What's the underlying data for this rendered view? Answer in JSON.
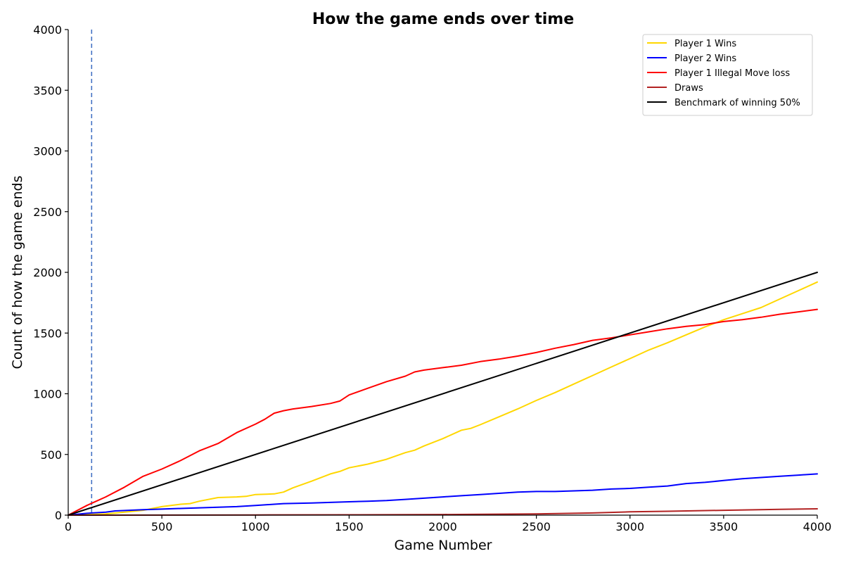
{
  "chart_data": {
    "type": "line",
    "title": "How the game ends over time",
    "xlabel": "Game Number",
    "ylabel": "Count of how the game ends",
    "xlim": [
      0,
      4000
    ],
    "ylim": [
      0,
      4000
    ],
    "xticks": [
      0,
      500,
      1000,
      1500,
      2000,
      2500,
      3000,
      3500,
      4000
    ],
    "yticks": [
      0,
      500,
      1000,
      1500,
      2000,
      2500,
      3000,
      3500,
      4000
    ],
    "grid": false,
    "legend_position": "top-right",
    "vline": {
      "x": 125,
      "color": "#4472c4",
      "style": "dashed"
    },
    "series": [
      {
        "name": "Player 1 Wins",
        "color": "#ffd700",
        "points": [
          [
            0,
            0
          ],
          [
            200,
            10
          ],
          [
            300,
            25
          ],
          [
            400,
            40
          ],
          [
            500,
            70
          ],
          [
            600,
            90
          ],
          [
            650,
            95
          ],
          [
            700,
            115
          ],
          [
            800,
            145
          ],
          [
            900,
            150
          ],
          [
            950,
            155
          ],
          [
            1000,
            170
          ],
          [
            1100,
            175
          ],
          [
            1150,
            190
          ],
          [
            1200,
            225
          ],
          [
            1300,
            280
          ],
          [
            1400,
            340
          ],
          [
            1450,
            360
          ],
          [
            1500,
            390
          ],
          [
            1600,
            420
          ],
          [
            1700,
            460
          ],
          [
            1800,
            515
          ],
          [
            1850,
            535
          ],
          [
            1900,
            570
          ],
          [
            2000,
            630
          ],
          [
            2100,
            700
          ],
          [
            2150,
            715
          ],
          [
            2200,
            745
          ],
          [
            2300,
            810
          ],
          [
            2400,
            875
          ],
          [
            2500,
            945
          ],
          [
            2600,
            1010
          ],
          [
            2700,
            1080
          ],
          [
            2800,
            1150
          ],
          [
            2900,
            1220
          ],
          [
            3000,
            1290
          ],
          [
            3100,
            1360
          ],
          [
            3200,
            1420
          ],
          [
            3300,
            1485
          ],
          [
            3400,
            1550
          ],
          [
            3500,
            1610
          ],
          [
            3600,
            1660
          ],
          [
            3700,
            1710
          ],
          [
            3800,
            1780
          ],
          [
            3900,
            1850
          ],
          [
            4000,
            1920
          ]
        ]
      },
      {
        "name": "Player 2 Wins",
        "color": "#0000ff",
        "points": [
          [
            0,
            0
          ],
          [
            100,
            15
          ],
          [
            200,
            25
          ],
          [
            250,
            35
          ],
          [
            400,
            45
          ],
          [
            500,
            50
          ],
          [
            600,
            55
          ],
          [
            700,
            60
          ],
          [
            800,
            65
          ],
          [
            900,
            70
          ],
          [
            1000,
            80
          ],
          [
            1100,
            90
          ],
          [
            1150,
            95
          ],
          [
            1300,
            100
          ],
          [
            1400,
            105
          ],
          [
            1500,
            110
          ],
          [
            1600,
            115
          ],
          [
            1700,
            120
          ],
          [
            1800,
            130
          ],
          [
            1900,
            140
          ],
          [
            2000,
            150
          ],
          [
            2100,
            160
          ],
          [
            2200,
            170
          ],
          [
            2300,
            180
          ],
          [
            2400,
            190
          ],
          [
            2500,
            195
          ],
          [
            2600,
            195
          ],
          [
            2700,
            200
          ],
          [
            2800,
            205
          ],
          [
            2900,
            215
          ],
          [
            3000,
            220
          ],
          [
            3100,
            230
          ],
          [
            3200,
            240
          ],
          [
            3300,
            260
          ],
          [
            3400,
            270
          ],
          [
            3500,
            285
          ],
          [
            3600,
            300
          ],
          [
            3700,
            310
          ],
          [
            3800,
            320
          ],
          [
            3900,
            330
          ],
          [
            4000,
            340
          ]
        ]
      },
      {
        "name": "Player 1 Illegal Move loss",
        "color": "#ff0000",
        "points": [
          [
            0,
            0
          ],
          [
            100,
            80
          ],
          [
            200,
            150
          ],
          [
            300,
            230
          ],
          [
            400,
            320
          ],
          [
            500,
            380
          ],
          [
            600,
            450
          ],
          [
            700,
            530
          ],
          [
            800,
            590
          ],
          [
            900,
            680
          ],
          [
            1000,
            750
          ],
          [
            1050,
            790
          ],
          [
            1100,
            840
          ],
          [
            1150,
            860
          ],
          [
            1200,
            875
          ],
          [
            1300,
            895
          ],
          [
            1400,
            920
          ],
          [
            1450,
            940
          ],
          [
            1500,
            990
          ],
          [
            1600,
            1045
          ],
          [
            1700,
            1100
          ],
          [
            1800,
            1145
          ],
          [
            1850,
            1180
          ],
          [
            1900,
            1195
          ],
          [
            2000,
            1215
          ],
          [
            2100,
            1235
          ],
          [
            2200,
            1265
          ],
          [
            2300,
            1285
          ],
          [
            2400,
            1310
          ],
          [
            2500,
            1340
          ],
          [
            2600,
            1375
          ],
          [
            2700,
            1405
          ],
          [
            2800,
            1440
          ],
          [
            2900,
            1460
          ],
          [
            3000,
            1485
          ],
          [
            3100,
            1510
          ],
          [
            3200,
            1535
          ],
          [
            3300,
            1555
          ],
          [
            3400,
            1570
          ],
          [
            3500,
            1595
          ],
          [
            3600,
            1610
          ],
          [
            3700,
            1630
          ],
          [
            3800,
            1655
          ],
          [
            3900,
            1675
          ],
          [
            4000,
            1695
          ]
        ]
      },
      {
        "name": "Draws",
        "color": "#b22222",
        "points": [
          [
            0,
            0
          ],
          [
            1000,
            2
          ],
          [
            1500,
            3
          ],
          [
            2000,
            5
          ],
          [
            2500,
            10
          ],
          [
            2800,
            18
          ],
          [
            3000,
            27
          ],
          [
            3200,
            32
          ],
          [
            3500,
            40
          ],
          [
            3800,
            48
          ],
          [
            4000,
            52
          ]
        ]
      },
      {
        "name": "Benchmark of winning 50%",
        "color": "#000000",
        "points": [
          [
            0,
            0
          ],
          [
            4000,
            2000
          ]
        ]
      }
    ]
  }
}
